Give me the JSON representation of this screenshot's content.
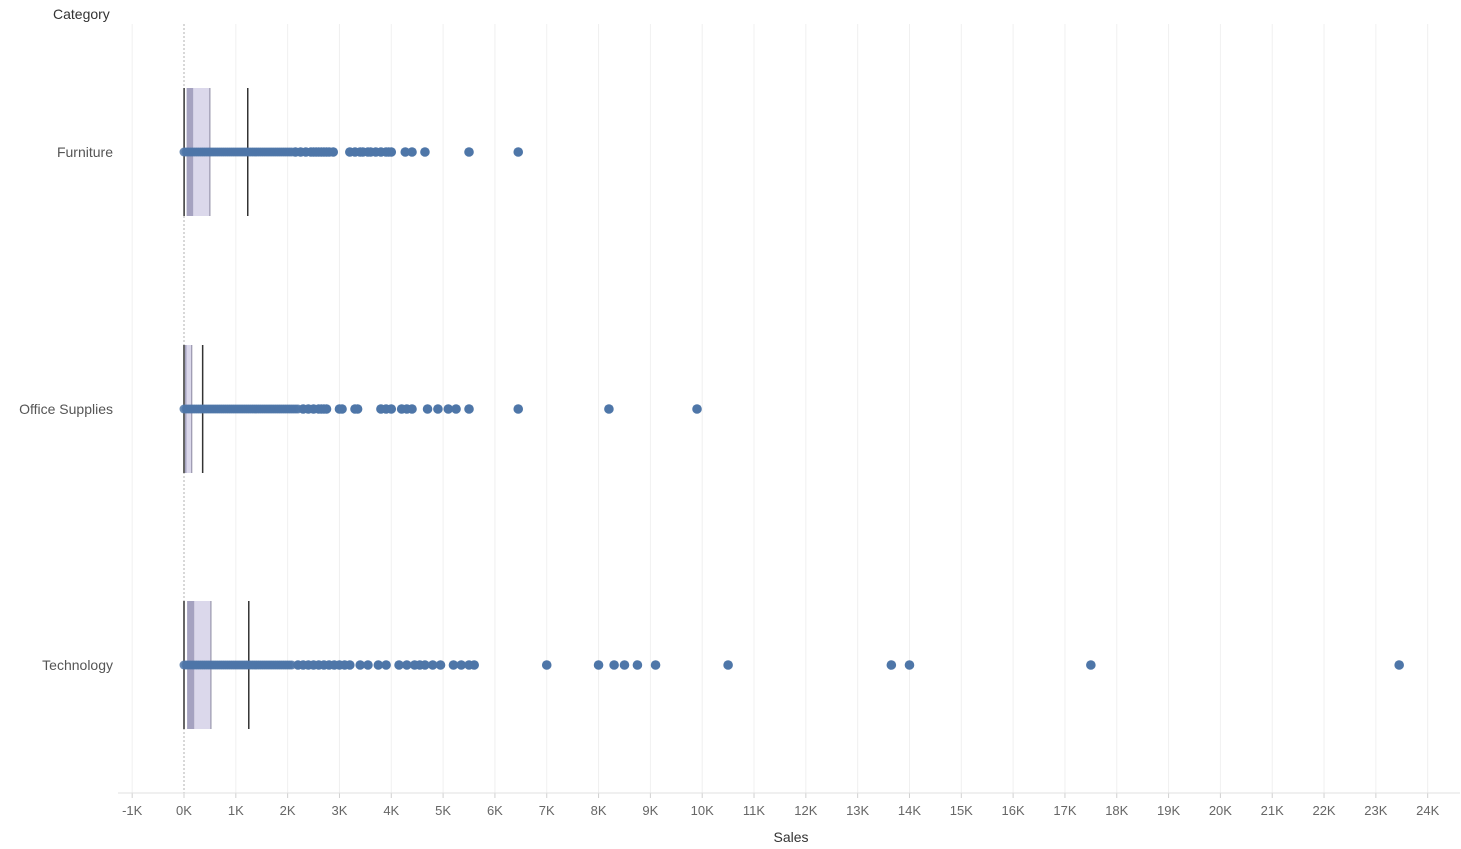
{
  "chart_data": {
    "type": "box-plot",
    "row_header": "Category",
    "xlabel": "Sales",
    "xlim": [
      -1000,
      24000
    ],
    "xticks": [
      {
        "value": -1000,
        "label": "-1K"
      },
      {
        "value": 0,
        "label": "0K"
      },
      {
        "value": 1000,
        "label": "1K"
      },
      {
        "value": 2000,
        "label": "2K"
      },
      {
        "value": 3000,
        "label": "3K"
      },
      {
        "value": 4000,
        "label": "4K"
      },
      {
        "value": 5000,
        "label": "5K"
      },
      {
        "value": 6000,
        "label": "6K"
      },
      {
        "value": 7000,
        "label": "7K"
      },
      {
        "value": 8000,
        "label": "8K"
      },
      {
        "value": 9000,
        "label": "9K"
      },
      {
        "value": 10000,
        "label": "10K"
      },
      {
        "value": 11000,
        "label": "11K"
      },
      {
        "value": 12000,
        "label": "12K"
      },
      {
        "value": 13000,
        "label": "13K"
      },
      {
        "value": 14000,
        "label": "14K"
      },
      {
        "value": 15000,
        "label": "15K"
      },
      {
        "value": 16000,
        "label": "16K"
      },
      {
        "value": 17000,
        "label": "17K"
      },
      {
        "value": 18000,
        "label": "18K"
      },
      {
        "value": 19000,
        "label": "19K"
      },
      {
        "value": 20000,
        "label": "20K"
      },
      {
        "value": 21000,
        "label": "21K"
      },
      {
        "value": 22000,
        "label": "22K"
      },
      {
        "value": 23000,
        "label": "23K"
      },
      {
        "value": 24000,
        "label": "24K"
      }
    ],
    "grid": true,
    "colors": {
      "point": "#4e76a8",
      "box_lower": "#9b98b9",
      "box_upper": "#d9d6ea",
      "whisker": "#333333",
      "grid": "#f0f0f0",
      "zero_line": "#b0b0b0"
    },
    "categories": [
      "Furniture",
      "Office Supplies",
      "Technology"
    ],
    "series": [
      {
        "category": "Furniture",
        "whisker_low": 2,
        "q1": 50,
        "median": 180,
        "q3": 500,
        "whisker_high": 1230,
        "dense_points_range": [
          0,
          2100
        ],
        "points": [
          2150,
          2250,
          2350,
          2450,
          2500,
          2550,
          2600,
          2650,
          2700,
          2750,
          2800,
          2880,
          3200,
          3300,
          3400,
          3450,
          3550,
          3600,
          3700,
          3800,
          3900,
          3950,
          4000,
          4270,
          4400,
          4650,
          5500,
          6450
        ]
      },
      {
        "category": "Office Supplies",
        "whisker_low": 0,
        "q1": 20,
        "median": 50,
        "q3": 150,
        "whisker_high": 360,
        "dense_points_range": [
          0,
          2200
        ],
        "points": [
          2300,
          2400,
          2500,
          2600,
          2650,
          2700,
          2750,
          3000,
          3050,
          3300,
          3350,
          3800,
          3900,
          4000,
          4200,
          4300,
          4400,
          4700,
          4900,
          5100,
          5250,
          5500,
          6450,
          8200,
          9900
        ]
      },
      {
        "category": "Technology",
        "whisker_low": 0,
        "q1": 60,
        "median": 200,
        "q3": 520,
        "whisker_high": 1250,
        "dense_points_range": [
          0,
          2100
        ],
        "points": [
          2200,
          2300,
          2400,
          2500,
          2600,
          2700,
          2800,
          2900,
          3000,
          3100,
          3200,
          3400,
          3550,
          3750,
          3900,
          4150,
          4300,
          4450,
          4550,
          4650,
          4800,
          4950,
          5200,
          5350,
          5500,
          5600,
          7000,
          8000,
          8300,
          8500,
          8750,
          9100,
          10500,
          13650,
          14000,
          17500,
          23450
        ]
      }
    ]
  }
}
